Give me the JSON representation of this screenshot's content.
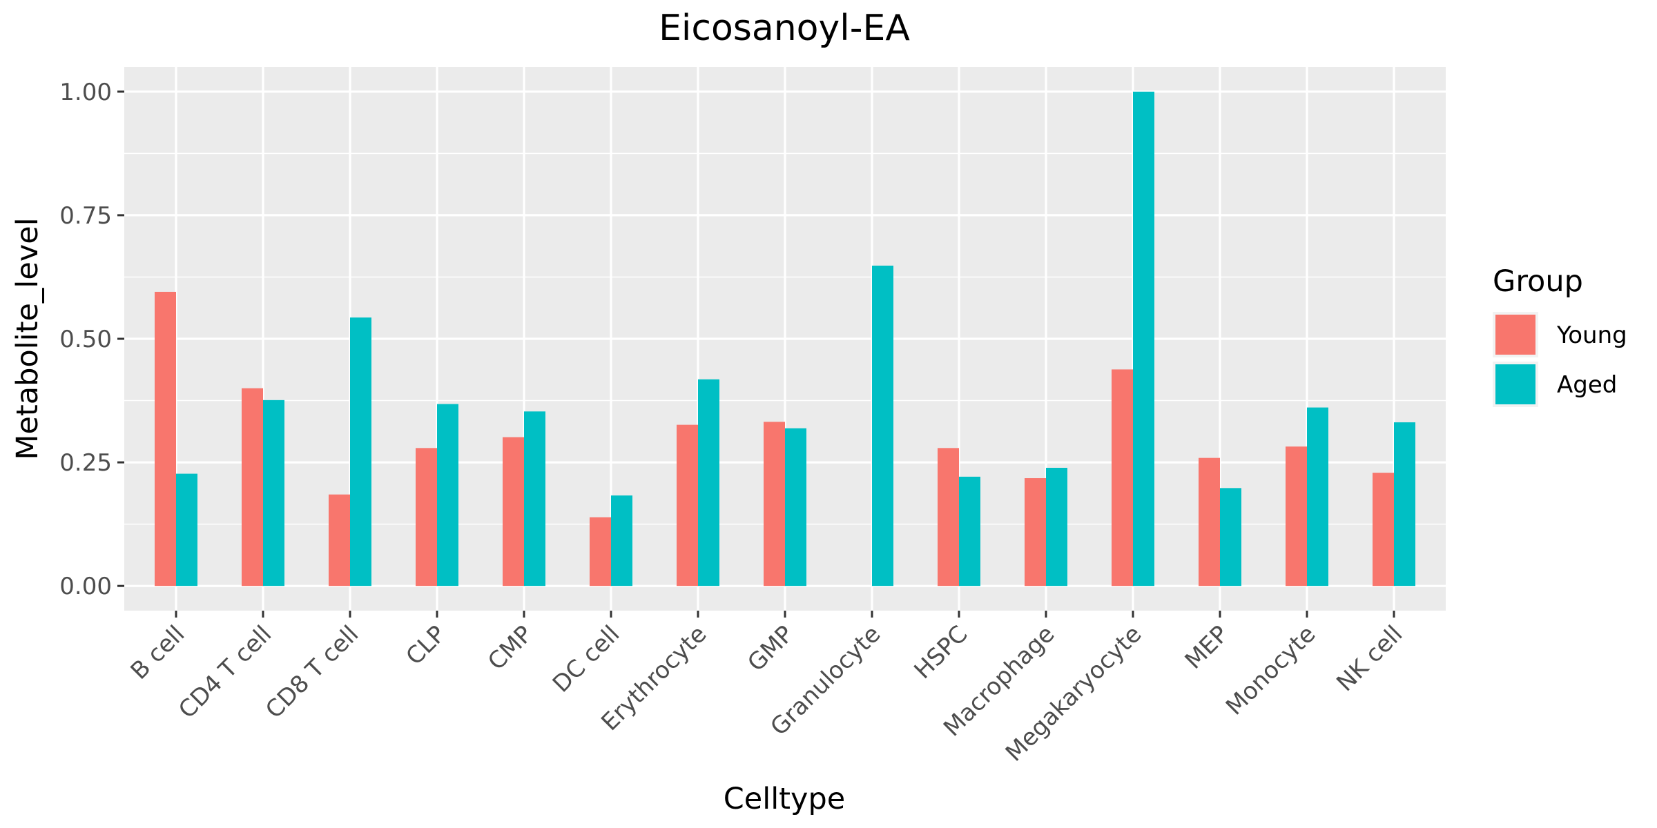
{
  "chart_data": {
    "type": "bar",
    "title": "Eicosanoyl-EA",
    "xlabel": "Celltype",
    "ylabel": "Metabolite_level",
    "categories": [
      "B cell",
      "CD4 T cell",
      "CD8 T cell",
      "CLP",
      "CMP",
      "DC cell",
      "Erythrocyte",
      "GMP",
      "Granulocyte",
      "HSPC",
      "Macrophage",
      "Megakaryocyte",
      "MEP",
      "Monocyte",
      "NK cell"
    ],
    "series": [
      {
        "name": "Young",
        "color": "#F8766D",
        "values": [
          0.595,
          0.4,
          0.185,
          0.279,
          0.301,
          0.139,
          0.326,
          0.332,
          null,
          0.279,
          0.218,
          0.438,
          0.259,
          0.282,
          0.229
        ]
      },
      {
        "name": "Aged",
        "color": "#00BFC4",
        "values": [
          0.227,
          0.376,
          0.543,
          0.368,
          0.353,
          0.183,
          0.418,
          0.319,
          0.648,
          0.221,
          0.239,
          1.0,
          0.198,
          0.361,
          0.331
        ]
      }
    ],
    "yticks": [
      "0.00",
      "0.25",
      "0.50",
      "0.75",
      "1.00"
    ],
    "ylim": [
      -0.05,
      1.05
    ],
    "grid": true,
    "panel_background": "#EBEBEB",
    "legend": {
      "title": "Group",
      "position": "right"
    }
  }
}
